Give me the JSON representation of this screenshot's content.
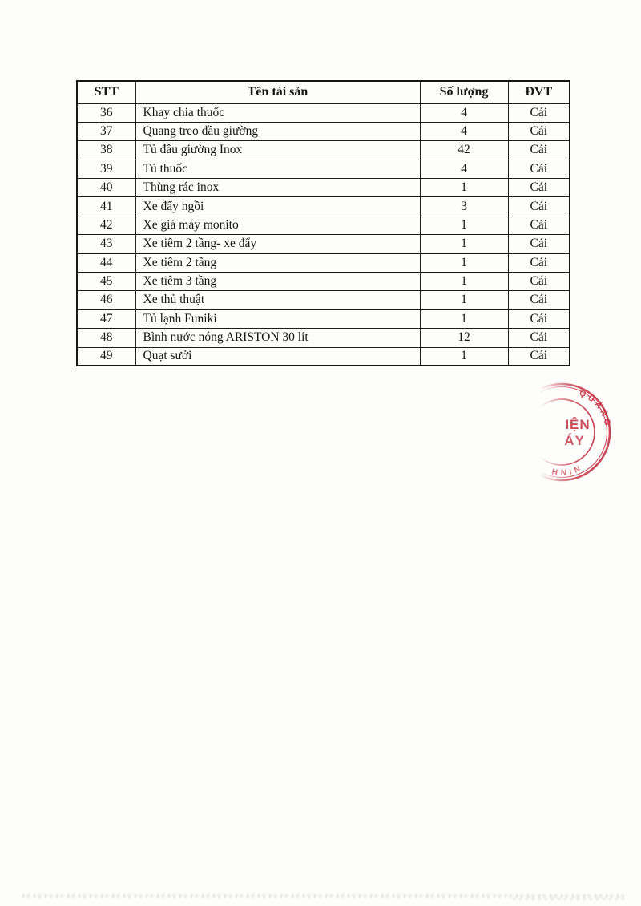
{
  "table": {
    "headers": [
      "STT",
      "Tên tài sản",
      "Số lượng",
      "ĐVT"
    ],
    "rows": [
      {
        "stt": "36",
        "name": "Khay chia thuốc",
        "qty": "4",
        "unit": "Cái"
      },
      {
        "stt": "37",
        "name": "Quang treo đầu giường",
        "qty": "4",
        "unit": "Cái"
      },
      {
        "stt": "38",
        "name": "Tủ đầu giường Inox",
        "qty": "42",
        "unit": "Cái"
      },
      {
        "stt": "39",
        "name": "Tủ thuốc",
        "qty": "4",
        "unit": "Cái"
      },
      {
        "stt": "40",
        "name": "Thùng rác inox",
        "qty": "1",
        "unit": "Cái"
      },
      {
        "stt": "41",
        "name": "Xe đẩy ngồi",
        "qty": "3",
        "unit": "Cái"
      },
      {
        "stt": "42",
        "name": "Xe giá máy monito",
        "qty": "1",
        "unit": "Cái"
      },
      {
        "stt": "43",
        "name": "Xe tiêm 2 tầng- xe đẩy",
        "qty": "1",
        "unit": "Cái"
      },
      {
        "stt": "44",
        "name": "Xe tiêm 2 tầng",
        "qty": "1",
        "unit": "Cái"
      },
      {
        "stt": "45",
        "name": "Xe tiêm 3 tầng",
        "qty": "1",
        "unit": "Cái"
      },
      {
        "stt": "46",
        "name": "Xe thủ thuật",
        "qty": "1",
        "unit": "Cái"
      },
      {
        "stt": "47",
        "name": "Tủ lạnh Funiki",
        "qty": "1",
        "unit": "Cái"
      },
      {
        "stt": "48",
        "name": "Bình nước nóng ARISTON 30 lít",
        "qty": "12",
        "unit": "Cái"
      },
      {
        "stt": "49",
        "name": "Quạt sưởi",
        "qty": "1",
        "unit": "Cái"
      }
    ]
  },
  "stamp": {
    "rim_top": "QUẢNG",
    "rim_bottom": "NINH",
    "center_line1": "IỆN",
    "center_line2": "ÁY",
    "color": "#c22e40"
  }
}
